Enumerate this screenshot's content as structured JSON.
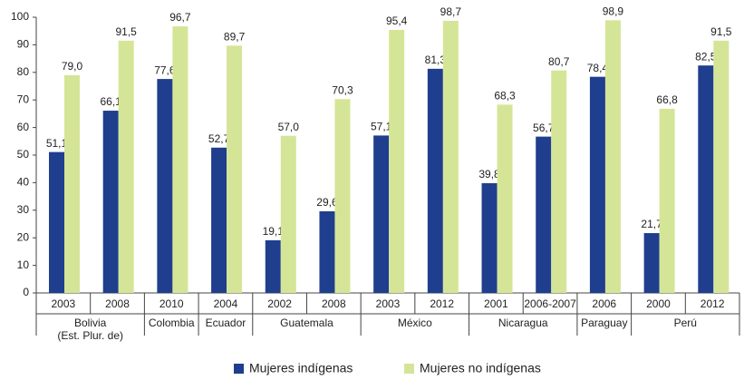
{
  "chart_data": {
    "type": "bar",
    "groups": [
      {
        "name": "Bolivia",
        "note": "(Est. Plur. de)",
        "years": [
          "2003",
          "2008"
        ]
      },
      {
        "name": "Colombia",
        "years": [
          "2010"
        ]
      },
      {
        "name": "Ecuador",
        "years": [
          "2004"
        ]
      },
      {
        "name": "Guatemala",
        "years": [
          "2002",
          "2008"
        ]
      },
      {
        "name": "México",
        "years": [
          "2003",
          "2012"
        ]
      },
      {
        "name": "Nicaragua",
        "years": [
          "2001",
          "2006-2007"
        ]
      },
      {
        "name": "Paraguay",
        "years": [
          "2006"
        ]
      },
      {
        "name": "Perú",
        "years": [
          "2000",
          "2012"
        ]
      }
    ],
    "series": [
      {
        "name": "Mujeres indígenas",
        "color": "#1f3e8e",
        "values": [
          51.1,
          66.1,
          77.6,
          52.7,
          19.1,
          29.6,
          57.1,
          81.3,
          39.8,
          56.7,
          78.4,
          21.7,
          82.5
        ],
        "value_labels": [
          "51,1",
          "66,1",
          "77,6",
          "52,7",
          "19,1",
          "29,6",
          "57,1",
          "81,3",
          "39,8",
          "56,7",
          "78,4",
          "21,7",
          "82,5"
        ]
      },
      {
        "name": "Mujeres no indígenas",
        "color": "#d5e597",
        "values": [
          79.0,
          91.5,
          96.7,
          89.7,
          57.0,
          70.3,
          95.4,
          98.7,
          68.3,
          80.7,
          98.9,
          66.8,
          91.5
        ],
        "value_labels": [
          "79,0",
          "91,5",
          "96,7",
          "89,7",
          "57,0",
          "70,3",
          "95,4",
          "98,7",
          "68,3",
          "80,7",
          "98,9",
          "66,8",
          "91,5"
        ]
      }
    ],
    "ylim": [
      0,
      100
    ],
    "yticks": [
      0,
      10,
      20,
      30,
      40,
      50,
      60,
      70,
      80,
      90,
      100
    ]
  }
}
